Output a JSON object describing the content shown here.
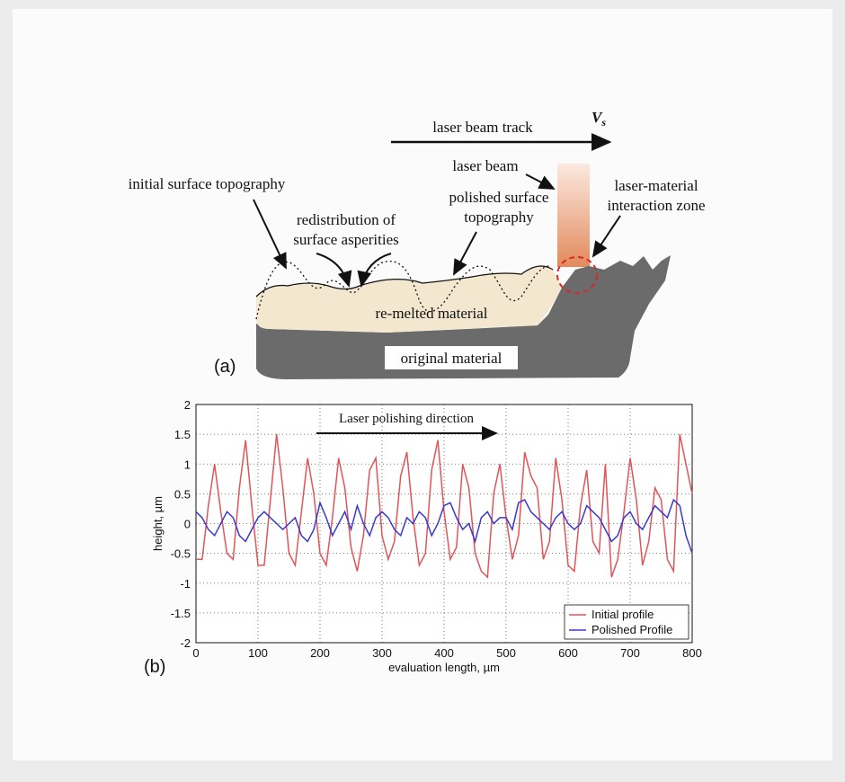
{
  "diagram": {
    "track_label": "laser beam track",
    "speed_label": {
      "main": "V",
      "sub": "s"
    },
    "beam_label": "laser beam",
    "zone_label": [
      "laser-material",
      "interaction zone"
    ],
    "initial_label": "initial surface topography",
    "redistribution_label": [
      "redistribution of",
      "surface asperities"
    ],
    "polished_label": [
      "polished surface",
      "topography"
    ],
    "remelted_label": "re-melted material",
    "original_label": "original material",
    "panel_label": "(a)"
  },
  "chart_data": {
    "type": "line",
    "panel_label": "(b)",
    "annotation": "Laser polishing direction",
    "xlabel": "evaluation length, µm",
    "ylabel": "height, µm",
    "xlim": [
      0,
      800
    ],
    "ylim": [
      -2,
      2
    ],
    "xticks": [
      0,
      100,
      200,
      300,
      400,
      500,
      600,
      700,
      800
    ],
    "yticks": [
      -2,
      -1.5,
      -1,
      -0.5,
      0,
      0.5,
      1,
      1.5,
      2
    ],
    "grid": true,
    "legend": "lower right",
    "x": [
      0,
      10,
      20,
      30,
      40,
      50,
      60,
      70,
      80,
      90,
      100,
      110,
      120,
      130,
      140,
      150,
      160,
      170,
      180,
      190,
      200,
      210,
      220,
      230,
      240,
      250,
      260,
      270,
      280,
      290,
      300,
      310,
      320,
      330,
      340,
      350,
      360,
      370,
      380,
      390,
      400,
      410,
      420,
      430,
      440,
      450,
      460,
      470,
      480,
      490,
      500,
      510,
      520,
      530,
      540,
      550,
      560,
      570,
      580,
      590,
      600,
      610,
      620,
      630,
      640,
      650,
      660,
      670,
      680,
      690,
      700,
      710,
      720,
      730,
      740,
      750,
      760,
      770,
      780,
      790,
      800
    ],
    "series": [
      {
        "name": "Initial profile",
        "color": "#e0555a",
        "values": [
          -0.6,
          -0.6,
          0.3,
          1.0,
          0.2,
          -0.5,
          -0.6,
          0.6,
          1.4,
          0.3,
          -0.7,
          -0.7,
          0.4,
          1.5,
          0.6,
          -0.5,
          -0.7,
          0.2,
          1.1,
          0.5,
          -0.5,
          -0.7,
          0.1,
          1.1,
          0.6,
          -0.4,
          -0.8,
          -0.2,
          0.9,
          1.1,
          -0.2,
          -0.6,
          -0.3,
          0.8,
          1.2,
          0.1,
          -0.7,
          -0.5,
          0.9,
          1.4,
          0.2,
          -0.6,
          -0.4,
          1.0,
          0.6,
          -0.5,
          -0.8,
          -0.9,
          0.5,
          1.0,
          0.1,
          -0.6,
          -0.2,
          1.2,
          0.8,
          0.6,
          -0.6,
          -0.3,
          1.1,
          0.4,
          -0.7,
          -0.8,
          0.3,
          0.9,
          -0.3,
          -0.5,
          1.0,
          -0.9,
          -0.6,
          0.2,
          1.1,
          0.4,
          -0.7,
          -0.3,
          0.6,
          0.4,
          -0.6,
          -0.8,
          1.5,
          1.0,
          0.5
        ]
      },
      {
        "name": "Polished Profile",
        "color": "#3a3ad0",
        "values": [
          0.2,
          0.1,
          -0.1,
          -0.2,
          0.0,
          0.2,
          0.1,
          -0.2,
          -0.3,
          -0.1,
          0.1,
          0.2,
          0.1,
          0.0,
          -0.1,
          0.0,
          0.1,
          -0.2,
          -0.3,
          -0.1,
          0.35,
          0.1,
          -0.2,
          0.0,
          0.2,
          -0.1,
          0.3,
          0.0,
          -0.2,
          0.1,
          0.2,
          0.1,
          -0.1,
          -0.2,
          0.1,
          0.0,
          0.2,
          0.1,
          -0.2,
          0.0,
          0.3,
          0.35,
          0.1,
          -0.1,
          0.0,
          -0.3,
          0.1,
          0.2,
          0.0,
          0.1,
          0.1,
          -0.1,
          0.35,
          0.4,
          0.2,
          0.1,
          0.0,
          -0.1,
          0.1,
          0.2,
          0.0,
          -0.1,
          0.0,
          0.3,
          0.2,
          0.1,
          -0.1,
          -0.3,
          -0.2,
          0.1,
          0.2,
          0.0,
          -0.1,
          0.1,
          0.3,
          0.2,
          0.1,
          0.4,
          0.3,
          -0.2,
          -0.5
        ]
      }
    ]
  }
}
